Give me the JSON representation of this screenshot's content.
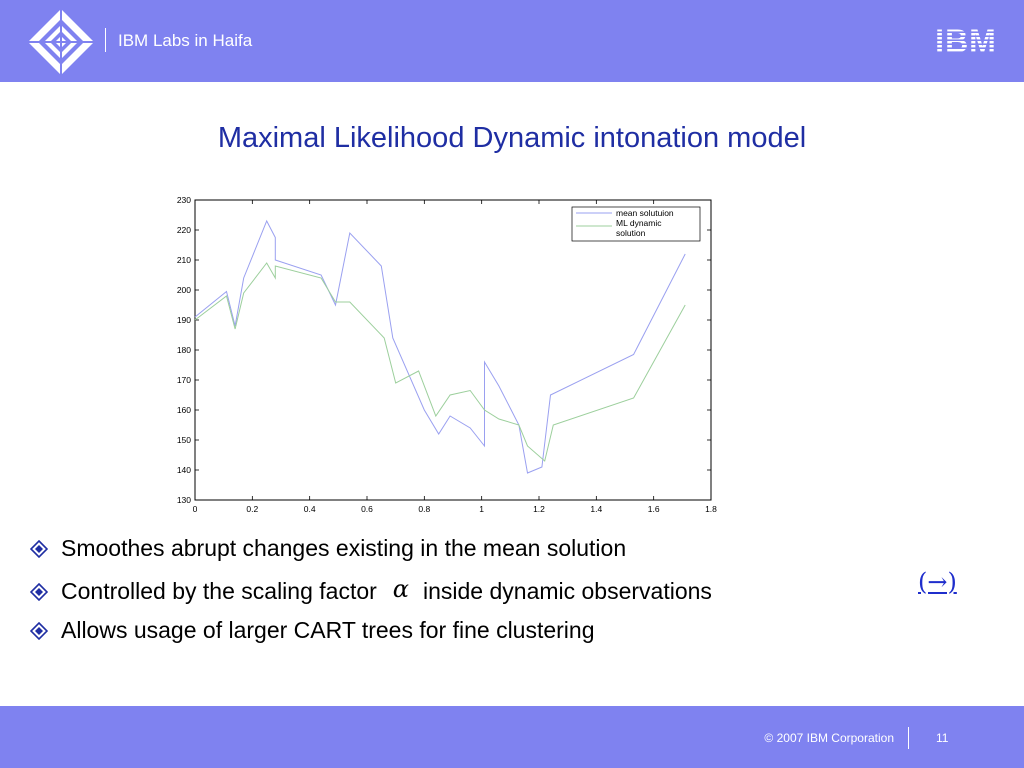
{
  "header": {
    "lab_name": "IBM Labs in Haifa",
    "brand_logo": "IBM",
    "bg_color": "#7f82f0"
  },
  "title": "Maximal Likelihood Dynamic intonation model",
  "chart_data": {
    "type": "line",
    "title": "",
    "xlabel": "",
    "ylabel": "",
    "xlim": [
      0,
      1.8
    ],
    "ylim": [
      130,
      230
    ],
    "xticks": [
      "0",
      "0.2",
      "0.4",
      "0.6",
      "0.8",
      "1",
      "1.2",
      "1.4",
      "1.6",
      "1.8"
    ],
    "yticks": [
      "130",
      "140",
      "150",
      "160",
      "170",
      "180",
      "190",
      "200",
      "210",
      "220",
      "230"
    ],
    "grid": false,
    "legend_position": "top-right",
    "series": [
      {
        "name": "mean solutuion",
        "color": "#9aa0f0",
        "points": [
          [
            0,
            191
          ],
          [
            0.11,
            199.5
          ],
          [
            0.14,
            188
          ],
          [
            0.17,
            204
          ],
          [
            0.25,
            223
          ],
          [
            0.28,
            217.5
          ],
          [
            0.28,
            210
          ],
          [
            0.44,
            205
          ],
          [
            0.49,
            195
          ],
          [
            0.54,
            219
          ],
          [
            0.65,
            208
          ],
          [
            0.69,
            184
          ],
          [
            0.8,
            160
          ],
          [
            0.85,
            152
          ],
          [
            0.89,
            158
          ],
          [
            0.96,
            154
          ],
          [
            1.01,
            148
          ],
          [
            1.01,
            176
          ],
          [
            1.06,
            168
          ],
          [
            1.13,
            155
          ],
          [
            1.16,
            139
          ],
          [
            1.21,
            141
          ],
          [
            1.24,
            165
          ],
          [
            1.53,
            178.5
          ],
          [
            1.71,
            212
          ]
        ]
      },
      {
        "name": "ML dynamic solution",
        "color": "#9ccf9c",
        "points": [
          [
            0,
            190
          ],
          [
            0.11,
            198
          ],
          [
            0.14,
            187
          ],
          [
            0.17,
            199
          ],
          [
            0.25,
            209
          ],
          [
            0.28,
            204
          ],
          [
            0.28,
            208
          ],
          [
            0.44,
            204
          ],
          [
            0.49,
            196
          ],
          [
            0.54,
            196
          ],
          [
            0.66,
            184
          ],
          [
            0.7,
            169
          ],
          [
            0.78,
            173
          ],
          [
            0.84,
            158
          ],
          [
            0.89,
            165
          ],
          [
            0.96,
            166.5
          ],
          [
            1.01,
            160
          ],
          [
            1.06,
            157
          ],
          [
            1.13,
            155
          ],
          [
            1.16,
            148
          ],
          [
            1.22,
            143
          ],
          [
            1.25,
            155
          ],
          [
            1.53,
            164
          ],
          [
            1.71,
            195
          ]
        ]
      }
    ]
  },
  "bullets": [
    {
      "icon": "diamond-bullet-icon",
      "text": "Smoothes abrupt changes existing in the mean solution"
    },
    {
      "icon": "diamond-bullet-icon",
      "text_before": "Controlled by the scaling factor",
      "symbol": "α",
      "text_after": "inside dynamic observations"
    },
    {
      "icon": "diamond-bullet-icon",
      "text": "Allows usage of larger CART trees for fine clustering"
    }
  ],
  "nav_link": "(→)",
  "footer": {
    "copyright": "© 2007 IBM Corporation",
    "page_number": "11"
  }
}
